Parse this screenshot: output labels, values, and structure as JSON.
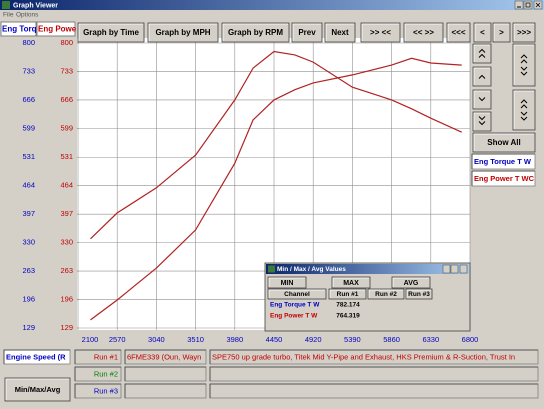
{
  "window": {
    "title": "Graph Viewer",
    "menu": [
      "File",
      "Options"
    ]
  },
  "toolbar": [
    "Graph by Time",
    "Graph by MPH",
    "Graph by RPM",
    "Prev",
    "Next",
    ">> <<",
    "<< >>",
    "<<<",
    "<",
    ">",
    ">>>"
  ],
  "chart_data": {
    "type": "line",
    "ylabel": "Eng Torq",
    "y2label": "Eng Powe",
    "xlabel": "Engine Speed (R",
    "x": [
      2250,
      2570,
      3040,
      3510,
      3980,
      4200,
      4450,
      4700,
      4920,
      5390,
      5860,
      6100,
      6330,
      6700
    ],
    "series": [
      {
        "name": "Eng Torque T W",
        "color": "#b22222",
        "values": [
          339,
          400,
          459,
          536,
          666,
          741,
          780,
          772,
          755,
          696,
          666,
          645,
          623,
          590
        ]
      },
      {
        "name": "Eng Power T WC",
        "color": "#b22222",
        "axis": "y2",
        "values": [
          148,
          195,
          270,
          360,
          517,
          619,
          666,
          690,
          706,
          725,
          748,
          764,
          753,
          748
        ]
      }
    ],
    "xlim": [
      2100,
      6800
    ],
    "xticks": [
      2100,
      2570,
      3040,
      3510,
      3980,
      4450,
      4920,
      5390,
      5860,
      6330,
      6800
    ],
    "ylim": [
      129,
      800
    ],
    "yticks": [
      129,
      196,
      263,
      330,
      397,
      464,
      531,
      599,
      666,
      733,
      800
    ],
    "y2lim": [
      129,
      800
    ],
    "y2ticks": [
      129,
      196,
      263,
      330,
      397,
      464,
      531,
      599,
      666,
      733,
      800
    ],
    "grid": true
  },
  "show_all": "Show All",
  "runs": [
    {
      "label": "Run #1",
      "id": "6FME339 (Oun, Wayn",
      "description": "SPE750 up grade turbo, Titek Mid Y-Pipe and Exhaust, HKS Premium & R-Suction, Trust In"
    },
    {
      "label": "Run #2"
    },
    {
      "label": "Run #3"
    }
  ],
  "min_max_avg_button": "Min/Max/Avg",
  "dialog": {
    "title": "Min / Max / Avg Values",
    "buttons": [
      "MIN",
      "MAX",
      "AVG"
    ],
    "columns": [
      "Channel",
      "Run #1",
      "Run #2",
      "Run #3"
    ],
    "rows": [
      [
        "Eng Torque T W",
        782.174
      ],
      [
        "Eng Power T W",
        764.319
      ]
    ]
  }
}
